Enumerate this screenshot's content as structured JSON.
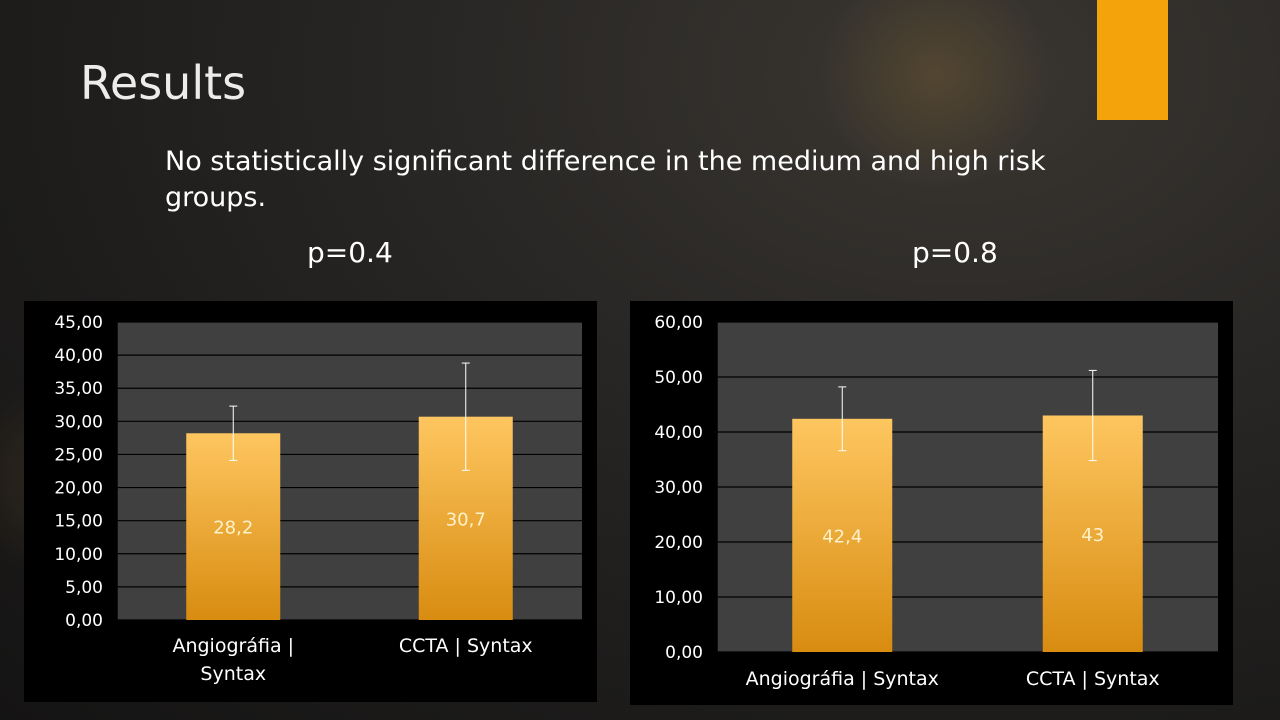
{
  "slide": {
    "title": "Results",
    "subtitle": "No statistically significant difference in the medium and high risk groups.",
    "accent_color": "#f4a30b"
  },
  "pvalues": {
    "left": "p=0.4",
    "right": "p=0.8"
  },
  "chart_data": [
    {
      "type": "bar",
      "categories": [
        [
          "Angiográfia |",
          "Syntax"
        ],
        [
          "CCTA | Syntax"
        ]
      ],
      "values": [
        28.2,
        30.7
      ],
      "value_labels": [
        "28,2",
        "30,7"
      ],
      "error_bars": [
        [
          24.1,
          32.3
        ],
        [
          22.6,
          38.8
        ]
      ],
      "yticks": [
        "0,00",
        "5,00",
        "10,00",
        "15,00",
        "20,00",
        "25,00",
        "30,00",
        "35,00",
        "40,00",
        "45,00"
      ],
      "ylim": [
        0,
        45
      ],
      "ystep": 5,
      "grid": true,
      "colors": {
        "bar_top": "#fec660",
        "bar_bottom": "#d88c10",
        "plot_bg": "#404040",
        "grid": "#000000",
        "label": "#ffffff",
        "value_label": "#fff2cc"
      }
    },
    {
      "type": "bar",
      "categories": [
        [
          "Angiográfia | Syntax"
        ],
        [
          "CCTA | Syntax"
        ]
      ],
      "values": [
        42.4,
        43
      ],
      "value_labels": [
        "42,4",
        "43"
      ],
      "error_bars": [
        [
          36.6,
          48.2
        ],
        [
          34.8,
          51.2
        ]
      ],
      "yticks": [
        "0,00",
        "10,00",
        "20,00",
        "30,00",
        "40,00",
        "50,00",
        "60,00"
      ],
      "ylim": [
        0,
        60
      ],
      "ystep": 10,
      "grid": true,
      "colors": {
        "bar_top": "#fec660",
        "bar_bottom": "#d88c10",
        "plot_bg": "#404040",
        "grid": "#000000",
        "label": "#ffffff",
        "value_label": "#fff2cc"
      }
    }
  ]
}
